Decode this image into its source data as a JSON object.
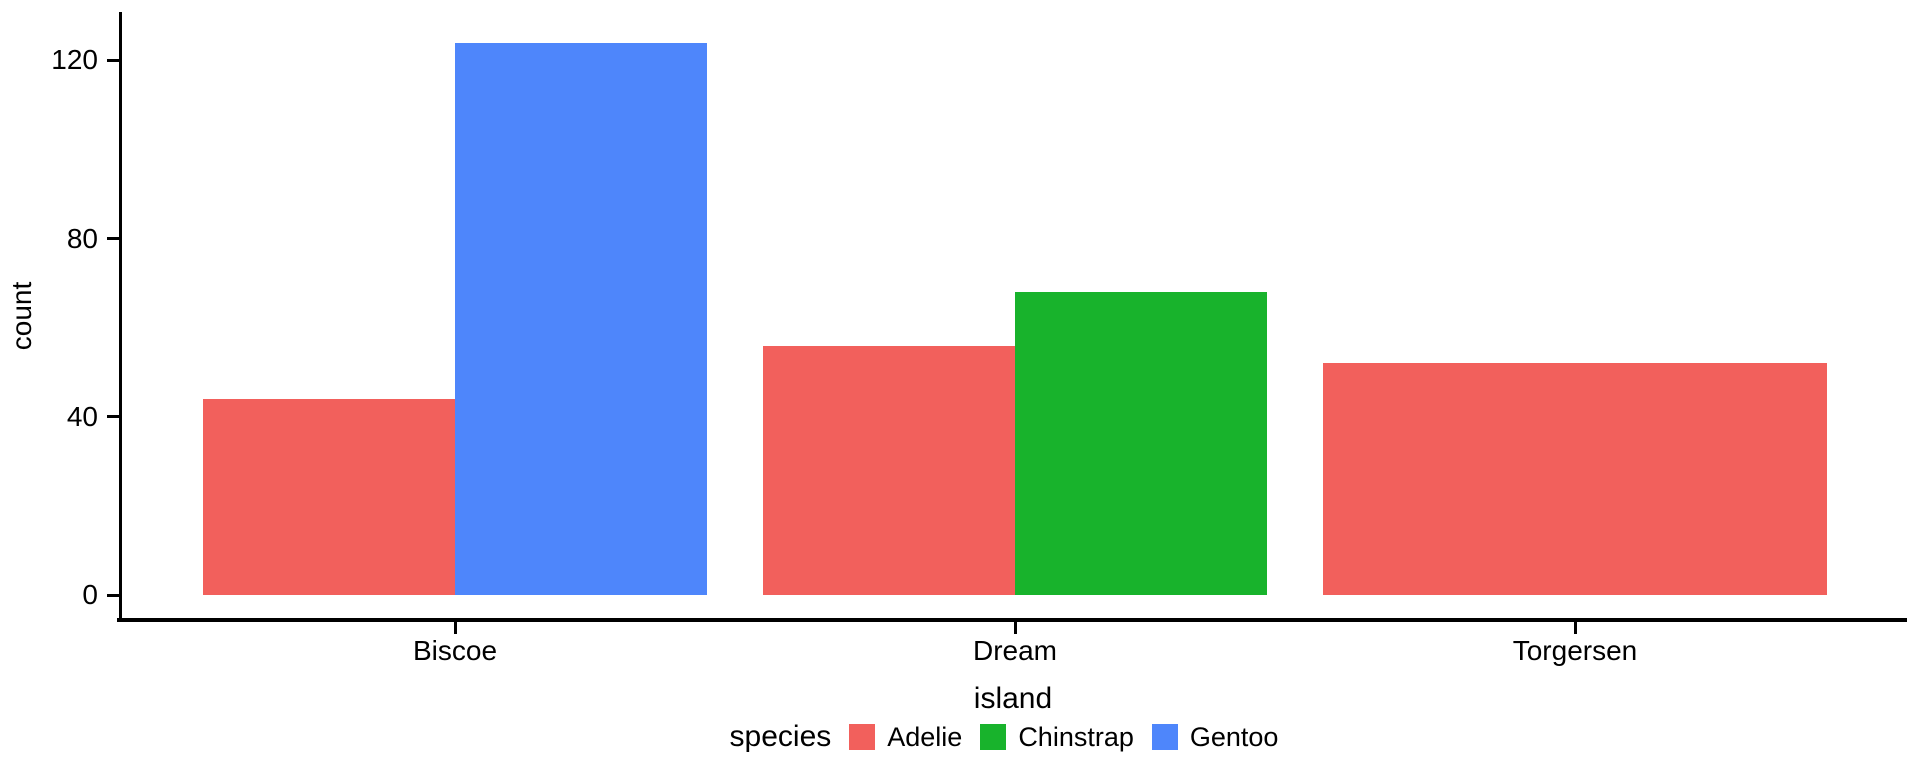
{
  "chart_data": {
    "type": "bar",
    "bar_layout": "dodge",
    "title": "",
    "xlabel": "island",
    "ylabel": "count",
    "categories": [
      "Biscoe",
      "Dream",
      "Torgersen"
    ],
    "series": [
      {
        "name": "Adelie",
        "color": "#F2605C",
        "values": [
          44,
          56,
          52
        ]
      },
      {
        "name": "Chinstrap",
        "color": "#18B32C",
        "values": [
          null,
          68,
          null
        ]
      },
      {
        "name": "Gentoo",
        "color": "#4E86FB",
        "values": [
          124,
          null,
          null
        ]
      }
    ],
    "yticks": [
      0,
      40,
      80,
      120
    ],
    "ylim": [
      0,
      131
    ],
    "grid": false,
    "legend_title": "species",
    "legend_position": "bottom",
    "axis_color": "#000000",
    "text_color": "#000000",
    "background_color": "#ffffff"
  }
}
